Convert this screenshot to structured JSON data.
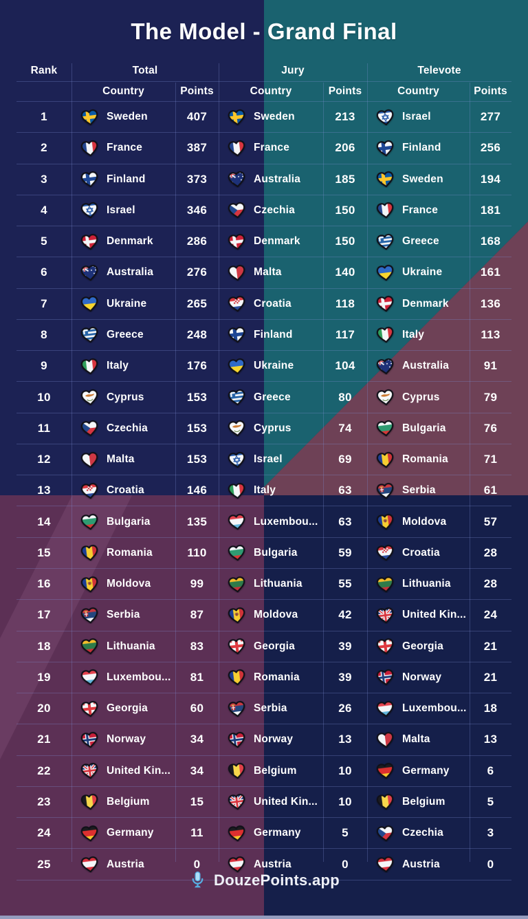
{
  "title": "The Model - Grand Final",
  "table": {
    "rank_header": "Rank",
    "sections": [
      {
        "label": "Total",
        "country_header": "Country",
        "points_header": "Points"
      },
      {
        "label": "Jury",
        "country_header": "Country",
        "points_header": "Points"
      },
      {
        "label": "Televote",
        "country_header": "Country",
        "points_header": "Points"
      }
    ],
    "rows": [
      {
        "rank": "1",
        "total": {
          "country": "Sweden",
          "flag": "sweden",
          "points": "407"
        },
        "jury": {
          "country": "Sweden",
          "flag": "sweden",
          "points": "213"
        },
        "televote": {
          "country": "Israel",
          "flag": "israel",
          "points": "277"
        }
      },
      {
        "rank": "2",
        "total": {
          "country": "France",
          "flag": "france",
          "points": "387"
        },
        "jury": {
          "country": "France",
          "flag": "france",
          "points": "206"
        },
        "televote": {
          "country": "Finland",
          "flag": "finland",
          "points": "256"
        }
      },
      {
        "rank": "3",
        "total": {
          "country": "Finland",
          "flag": "finland",
          "points": "373"
        },
        "jury": {
          "country": "Australia",
          "flag": "australia",
          "points": "185"
        },
        "televote": {
          "country": "Sweden",
          "flag": "sweden",
          "points": "194"
        }
      },
      {
        "rank": "4",
        "total": {
          "country": "Israel",
          "flag": "israel",
          "points": "346"
        },
        "jury": {
          "country": "Czechia",
          "flag": "czechia",
          "points": "150"
        },
        "televote": {
          "country": "France",
          "flag": "france",
          "points": "181"
        }
      },
      {
        "rank": "5",
        "total": {
          "country": "Denmark",
          "flag": "denmark",
          "points": "286"
        },
        "jury": {
          "country": "Denmark",
          "flag": "denmark",
          "points": "150"
        },
        "televote": {
          "country": "Greece",
          "flag": "greece",
          "points": "168"
        }
      },
      {
        "rank": "6",
        "total": {
          "country": "Australia",
          "flag": "australia",
          "points": "276"
        },
        "jury": {
          "country": "Malta",
          "flag": "malta",
          "points": "140"
        },
        "televote": {
          "country": "Ukraine",
          "flag": "ukraine",
          "points": "161"
        }
      },
      {
        "rank": "7",
        "total": {
          "country": "Ukraine",
          "flag": "ukraine",
          "points": "265"
        },
        "jury": {
          "country": "Croatia",
          "flag": "croatia",
          "points": "118"
        },
        "televote": {
          "country": "Denmark",
          "flag": "denmark",
          "points": "136"
        }
      },
      {
        "rank": "8",
        "total": {
          "country": "Greece",
          "flag": "greece",
          "points": "248"
        },
        "jury": {
          "country": "Finland",
          "flag": "finland",
          "points": "117"
        },
        "televote": {
          "country": "Italy",
          "flag": "italy",
          "points": "113"
        }
      },
      {
        "rank": "9",
        "total": {
          "country": "Italy",
          "flag": "italy",
          "points": "176"
        },
        "jury": {
          "country": "Ukraine",
          "flag": "ukraine",
          "points": "104"
        },
        "televote": {
          "country": "Australia",
          "flag": "australia",
          "points": "91"
        }
      },
      {
        "rank": "10",
        "total": {
          "country": "Cyprus",
          "flag": "cyprus",
          "points": "153"
        },
        "jury": {
          "country": "Greece",
          "flag": "greece",
          "points": "80"
        },
        "televote": {
          "country": "Cyprus",
          "flag": "cyprus",
          "points": "79"
        }
      },
      {
        "rank": "11",
        "total": {
          "country": "Czechia",
          "flag": "czechia",
          "points": "153"
        },
        "jury": {
          "country": "Cyprus",
          "flag": "cyprus",
          "points": "74"
        },
        "televote": {
          "country": "Bulgaria",
          "flag": "bulgaria",
          "points": "76"
        }
      },
      {
        "rank": "12",
        "total": {
          "country": "Malta",
          "flag": "malta",
          "points": "153"
        },
        "jury": {
          "country": "Israel",
          "flag": "israel",
          "points": "69"
        },
        "televote": {
          "country": "Romania",
          "flag": "romania",
          "points": "71"
        }
      },
      {
        "rank": "13",
        "total": {
          "country": "Croatia",
          "flag": "croatia",
          "points": "146"
        },
        "jury": {
          "country": "Italy",
          "flag": "italy",
          "points": "63"
        },
        "televote": {
          "country": "Serbia",
          "flag": "serbia",
          "points": "61"
        }
      },
      {
        "rank": "14",
        "total": {
          "country": "Bulgaria",
          "flag": "bulgaria",
          "points": "135"
        },
        "jury": {
          "country": "Luxembou...",
          "flag": "luxembourg",
          "points": "63"
        },
        "televote": {
          "country": "Moldova",
          "flag": "moldova",
          "points": "57"
        }
      },
      {
        "rank": "15",
        "total": {
          "country": "Romania",
          "flag": "romania",
          "points": "110"
        },
        "jury": {
          "country": "Bulgaria",
          "flag": "bulgaria",
          "points": "59"
        },
        "televote": {
          "country": "Croatia",
          "flag": "croatia",
          "points": "28"
        }
      },
      {
        "rank": "16",
        "total": {
          "country": "Moldova",
          "flag": "moldova",
          "points": "99"
        },
        "jury": {
          "country": "Lithuania",
          "flag": "lithuania",
          "points": "55"
        },
        "televote": {
          "country": "Lithuania",
          "flag": "lithuania",
          "points": "28"
        }
      },
      {
        "rank": "17",
        "total": {
          "country": "Serbia",
          "flag": "serbia",
          "points": "87"
        },
        "jury": {
          "country": "Moldova",
          "flag": "moldova",
          "points": "42"
        },
        "televote": {
          "country": "United Kin...",
          "flag": "unitedkingdom",
          "points": "24"
        }
      },
      {
        "rank": "18",
        "total": {
          "country": "Lithuania",
          "flag": "lithuania",
          "points": "83"
        },
        "jury": {
          "country": "Georgia",
          "flag": "georgia",
          "points": "39"
        },
        "televote": {
          "country": "Georgia",
          "flag": "georgia",
          "points": "21"
        }
      },
      {
        "rank": "19",
        "total": {
          "country": "Luxembou...",
          "flag": "luxembourg",
          "points": "81"
        },
        "jury": {
          "country": "Romania",
          "flag": "romania",
          "points": "39"
        },
        "televote": {
          "country": "Norway",
          "flag": "norway",
          "points": "21"
        }
      },
      {
        "rank": "20",
        "total": {
          "country": "Georgia",
          "flag": "georgia",
          "points": "60"
        },
        "jury": {
          "country": "Serbia",
          "flag": "serbia",
          "points": "26"
        },
        "televote": {
          "country": "Luxembou...",
          "flag": "luxembourg",
          "points": "18"
        }
      },
      {
        "rank": "21",
        "total": {
          "country": "Norway",
          "flag": "norway",
          "points": "34"
        },
        "jury": {
          "country": "Norway",
          "flag": "norway",
          "points": "13"
        },
        "televote": {
          "country": "Malta",
          "flag": "malta",
          "points": "13"
        }
      },
      {
        "rank": "22",
        "total": {
          "country": "United Kin...",
          "flag": "unitedkingdom",
          "points": "34"
        },
        "jury": {
          "country": "Belgium",
          "flag": "belgium",
          "points": "10"
        },
        "televote": {
          "country": "Germany",
          "flag": "germany",
          "points": "6"
        }
      },
      {
        "rank": "23",
        "total": {
          "country": "Belgium",
          "flag": "belgium",
          "points": "15"
        },
        "jury": {
          "country": "United Kin...",
          "flag": "unitedkingdom",
          "points": "10"
        },
        "televote": {
          "country": "Belgium",
          "flag": "belgium",
          "points": "5"
        }
      },
      {
        "rank": "24",
        "total": {
          "country": "Germany",
          "flag": "germany",
          "points": "11"
        },
        "jury": {
          "country": "Germany",
          "flag": "germany",
          "points": "5"
        },
        "televote": {
          "country": "Czechia",
          "flag": "czechia",
          "points": "3"
        }
      },
      {
        "rank": "25",
        "total": {
          "country": "Austria",
          "flag": "austria",
          "points": "0"
        },
        "jury": {
          "country": "Austria",
          "flag": "austria",
          "points": "0"
        },
        "televote": {
          "country": "Austria",
          "flag": "austria",
          "points": "0"
        }
      }
    ]
  },
  "footer": {
    "brand": "DouzePoints.app",
    "icon": "microphone-icon"
  },
  "colors": {
    "navy": "#1C2254",
    "navy_dark": "#151F4A",
    "teal": "#1A626F",
    "mauve": "#6E4156",
    "plum": "#5C3055",
    "plum_light": "#8A5680",
    "bottom_strip": "#949CBE",
    "line": "#8291D7",
    "footer_icon": "#7FC6EF",
    "text": "#FFFFFF"
  }
}
